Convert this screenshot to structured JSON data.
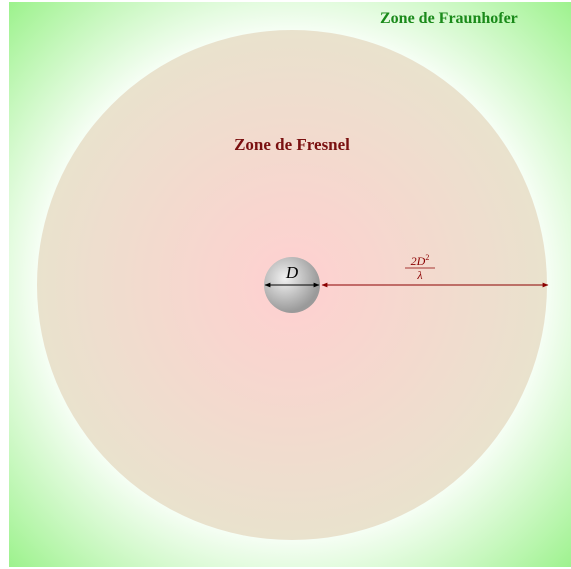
{
  "labels": {
    "far_field": "Zone de Fraunhofer",
    "near_field": "Zone de Fresnel",
    "diameter": "D",
    "distance": {
      "numerator": "2D",
      "exponent": "2",
      "denominator": "λ"
    }
  }
}
